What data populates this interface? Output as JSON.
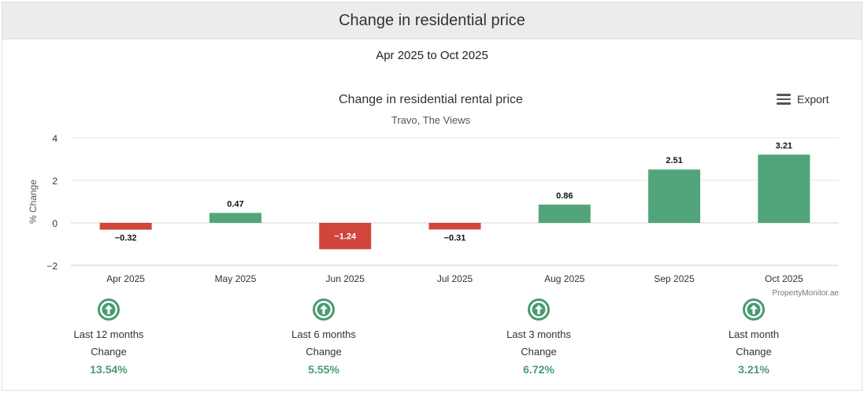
{
  "header": {
    "title": "Change in residential price"
  },
  "date_range": "Apr 2025 to Oct 2025",
  "export": {
    "label": "Export",
    "icon": "menu-icon"
  },
  "chart_data": {
    "type": "bar",
    "title": "Change in residential rental price",
    "subtitle": "Travo, The Views",
    "ylabel": "% Change",
    "xlabel": "",
    "categories": [
      "Apr 2025",
      "May 2025",
      "Jun 2025",
      "Jul 2025",
      "Aug 2025",
      "Sep 2025",
      "Oct 2025"
    ],
    "values": [
      -0.32,
      0.47,
      -1.24,
      -0.31,
      0.86,
      2.51,
      3.21
    ],
    "data_labels": [
      "-0.32",
      "0.47",
      "-1.24",
      "-0.31",
      "0.86",
      "2.51",
      "3.21"
    ],
    "ylim": [
      -2,
      4
    ],
    "yticks": [
      -2,
      0,
      2,
      4
    ],
    "grid": true,
    "colors": {
      "positive": "#52a57b",
      "negative": "#d0463b"
    },
    "credit": "PropertyMonitor.ae"
  },
  "stats": [
    {
      "label": "Last 12 months",
      "sublabel": "Change",
      "value": "13.54%",
      "icon": "up-arrow-circle-icon"
    },
    {
      "label": "Last 6 months",
      "sublabel": "Change",
      "value": "5.55%",
      "icon": "up-arrow-circle-icon"
    },
    {
      "label": "Last 3 months",
      "sublabel": "Change",
      "value": "6.72%",
      "icon": "up-arrow-circle-icon"
    },
    {
      "label": "Last month",
      "sublabel": "Change",
      "value": "3.21%",
      "icon": "up-arrow-circle-icon"
    }
  ],
  "icon_color": "#4a9a72"
}
